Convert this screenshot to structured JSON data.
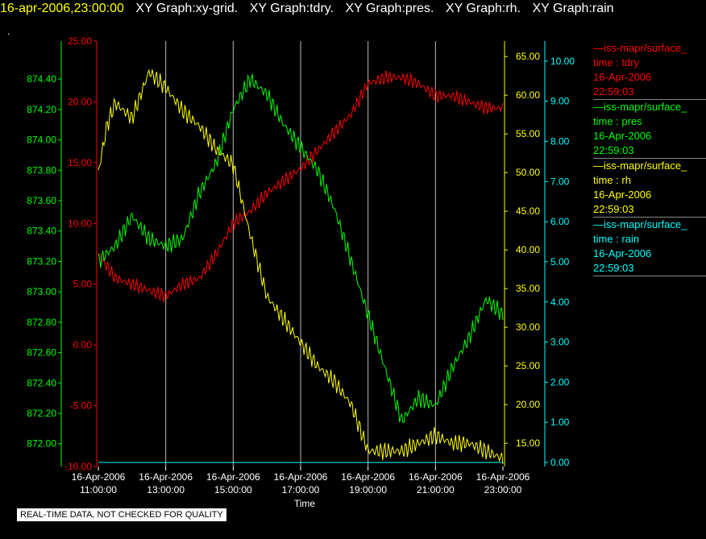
{
  "header": {
    "timestamp": "16-apr-2006,23:00:00",
    "items": [
      "XY Graph:xy-grid.",
      "XY Graph:tdry.",
      "XY Graph:pres.",
      "XY Graph:rh.",
      "XY Graph:rain"
    ],
    "dot": "."
  },
  "footer_note": "REAL-TIME DATA, NOT CHECKED FOR QUALITY",
  "colors": {
    "tdry": "#ff0000",
    "pres": "#00ff00",
    "rh": "#ffff00",
    "rain": "#00ffff",
    "grid": "#bbbbbb"
  },
  "legend": [
    {
      "series_label": "—iss-mapr/surface_",
      "var_label": "time : tdry",
      "date": "16-Apr-2006",
      "time": "22:59:03",
      "color": "#ff0000"
    },
    {
      "series_label": "—iss-mapr/surface_",
      "var_label": "time : pres",
      "date": "16-Apr-2006",
      "time": "22:59:03",
      "color": "#00ff00"
    },
    {
      "series_label": "—iss-mapr/surface_",
      "var_label": "time : rh",
      "date": "16-Apr-2006",
      "time": "22:59:03",
      "color": "#ffff00"
    },
    {
      "series_label": "—iss-mapr/surface_",
      "var_label": "time : rain",
      "date": "16-Apr-2006",
      "time": "22:59:03",
      "color": "#00ffff"
    }
  ],
  "chart_data": {
    "type": "line",
    "xlabel": "Time",
    "grid": true,
    "x_ticks": [
      {
        "date": "16-Apr-2006",
        "time": "11:00:00"
      },
      {
        "date": "16-Apr-2006",
        "time": "13:00:00"
      },
      {
        "date": "16-Apr-2006",
        "time": "15:00:00"
      },
      {
        "date": "16-Apr-2006",
        "time": "17:00:00"
      },
      {
        "date": "16-Apr-2006",
        "time": "19:00:00"
      },
      {
        "date": "16-Apr-2006",
        "time": "21:00:00"
      },
      {
        "date": "16-Apr-2006",
        "time": "23:00:00"
      }
    ],
    "x_range_hours": [
      11,
      23
    ],
    "axes": {
      "tdry": {
        "range": [
          -10,
          25
        ],
        "ticks": [
          "-10.00",
          "-5.00",
          "0.00",
          "5.00",
          "10.00",
          "15.00",
          "20.00",
          "25.00"
        ]
      },
      "pres": {
        "range": [
          871.85,
          874.65
        ],
        "ticks": [
          "872.00",
          "872.20",
          "872.40",
          "872.60",
          "872.80",
          "873.00",
          "873.20",
          "873.40",
          "873.60",
          "873.80",
          "874.00",
          "874.20",
          "874.40"
        ]
      },
      "rh": {
        "range": [
          12,
          67
        ],
        "ticks": [
          "15.00",
          "20.00",
          "25.00",
          "30.00",
          "35.00",
          "40.00",
          "45.00",
          "50.00",
          "55.00",
          "60.00",
          "65.00"
        ]
      },
      "rain": {
        "range": [
          -0.1,
          10.5
        ],
        "ticks": [
          "0.00",
          "1.00",
          "2.00",
          "3.00",
          "4.00",
          "5.00",
          "6.00",
          "7.00",
          "8.00",
          "9.00",
          "10.00"
        ]
      }
    },
    "series": [
      {
        "name": "tdry",
        "x": [
          11,
          11.5,
          12,
          12.5,
          13,
          13.5,
          14,
          14.5,
          15,
          15.5,
          16,
          16.5,
          17,
          17.5,
          18,
          18.5,
          19,
          19.5,
          20,
          20.5,
          21,
          21.5,
          22,
          22.5,
          23
        ],
        "values": [
          7.5,
          5.5,
          5,
          4.5,
          4,
          5,
          5.5,
          7.5,
          10,
          11,
          12.5,
          13.5,
          14.5,
          16,
          17.5,
          19,
          21.5,
          22,
          22,
          21.5,
          20.5,
          20.5,
          20,
          19.5,
          19.5
        ]
      },
      {
        "name": "pres",
        "x": [
          11,
          11.5,
          12,
          12.5,
          13,
          13.5,
          14,
          14.5,
          15,
          15.5,
          16,
          16.5,
          17,
          17.5,
          18,
          18.5,
          19,
          19.5,
          20,
          20.5,
          21,
          21.5,
          22,
          22.5,
          23
        ],
        "values": [
          873.2,
          873.3,
          873.5,
          873.35,
          873.3,
          873.35,
          873.65,
          873.85,
          874.2,
          874.4,
          874.3,
          874.1,
          873.95,
          873.8,
          873.55,
          873.2,
          872.85,
          872.5,
          872.15,
          872.3,
          872.25,
          872.5,
          872.7,
          872.95,
          872.85
        ]
      },
      {
        "name": "rh",
        "x": [
          11,
          11.25,
          11.5,
          12,
          12.5,
          13,
          13.5,
          14,
          14.5,
          15,
          15.5,
          16,
          16.5,
          17,
          17.5,
          18,
          18.5,
          19,
          19.5,
          20,
          20.5,
          21,
          21.5,
          22,
          22.5,
          23
        ],
        "values": [
          50,
          56,
          59,
          57,
          63,
          61,
          58,
          56,
          53,
          51,
          42,
          34,
          31,
          28,
          25,
          23,
          20,
          14,
          14,
          14,
          15,
          16,
          15,
          15,
          14,
          13
        ]
      },
      {
        "name": "rain",
        "x": [
          11,
          23
        ],
        "values": [
          0,
          0
        ]
      }
    ]
  }
}
